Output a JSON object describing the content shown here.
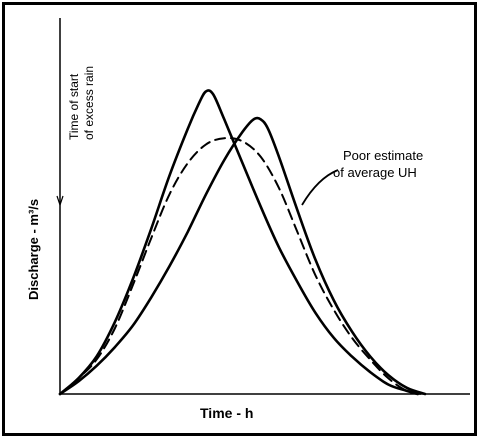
{
  "chart_data": {
    "type": "line",
    "title": "",
    "xlabel": "Time - h",
    "ylabel": "Discharge - m³/s",
    "rain_label_line1": "Time of start",
    "rain_label_line2": "of excess rain",
    "annotation_line1": "Poor estimate",
    "annotation_line2": "of average UH",
    "xlim": [
      0,
      1
    ],
    "ylim": [
      0,
      1
    ],
    "grid": false,
    "colors": {
      "line": "#000000",
      "background": "#ffffff"
    },
    "series": [
      {
        "style": "solid-thick",
        "x": [
          0.0,
          0.05,
          0.1,
          0.15,
          0.2,
          0.25,
          0.3,
          0.35,
          0.38,
          0.4,
          0.42,
          0.45,
          0.5,
          0.55,
          0.6,
          0.65,
          0.7,
          0.75,
          0.8,
          0.85,
          0.9,
          0.95,
          0.98
        ],
        "values": [
          0.0,
          0.05,
          0.12,
          0.23,
          0.37,
          0.53,
          0.7,
          0.85,
          0.93,
          0.97,
          0.96,
          0.88,
          0.74,
          0.6,
          0.47,
          0.36,
          0.26,
          0.18,
          0.12,
          0.07,
          0.03,
          0.01,
          0.0
        ]
      },
      {
        "style": "solid-thick",
        "x": [
          0.0,
          0.05,
          0.1,
          0.15,
          0.2,
          0.25,
          0.3,
          0.35,
          0.4,
          0.45,
          0.5,
          0.53,
          0.55,
          0.57,
          0.6,
          0.65,
          0.7,
          0.75,
          0.8,
          0.85,
          0.9,
          0.95,
          1.0
        ],
        "values": [
          0.0,
          0.04,
          0.09,
          0.15,
          0.22,
          0.31,
          0.41,
          0.52,
          0.64,
          0.75,
          0.84,
          0.88,
          0.88,
          0.85,
          0.76,
          0.59,
          0.43,
          0.3,
          0.2,
          0.12,
          0.06,
          0.02,
          0.0
        ]
      },
      {
        "style": "dashed",
        "x": [
          0.0,
          0.05,
          0.1,
          0.15,
          0.2,
          0.25,
          0.3,
          0.35,
          0.4,
          0.45,
          0.5,
          0.55,
          0.6,
          0.65,
          0.7,
          0.75,
          0.8,
          0.85,
          0.9,
          0.95,
          0.99
        ],
        "values": [
          0.0,
          0.05,
          0.11,
          0.21,
          0.35,
          0.5,
          0.64,
          0.74,
          0.8,
          0.82,
          0.81,
          0.76,
          0.66,
          0.52,
          0.38,
          0.27,
          0.18,
          0.11,
          0.05,
          0.01,
          0.0
        ]
      }
    ]
  }
}
